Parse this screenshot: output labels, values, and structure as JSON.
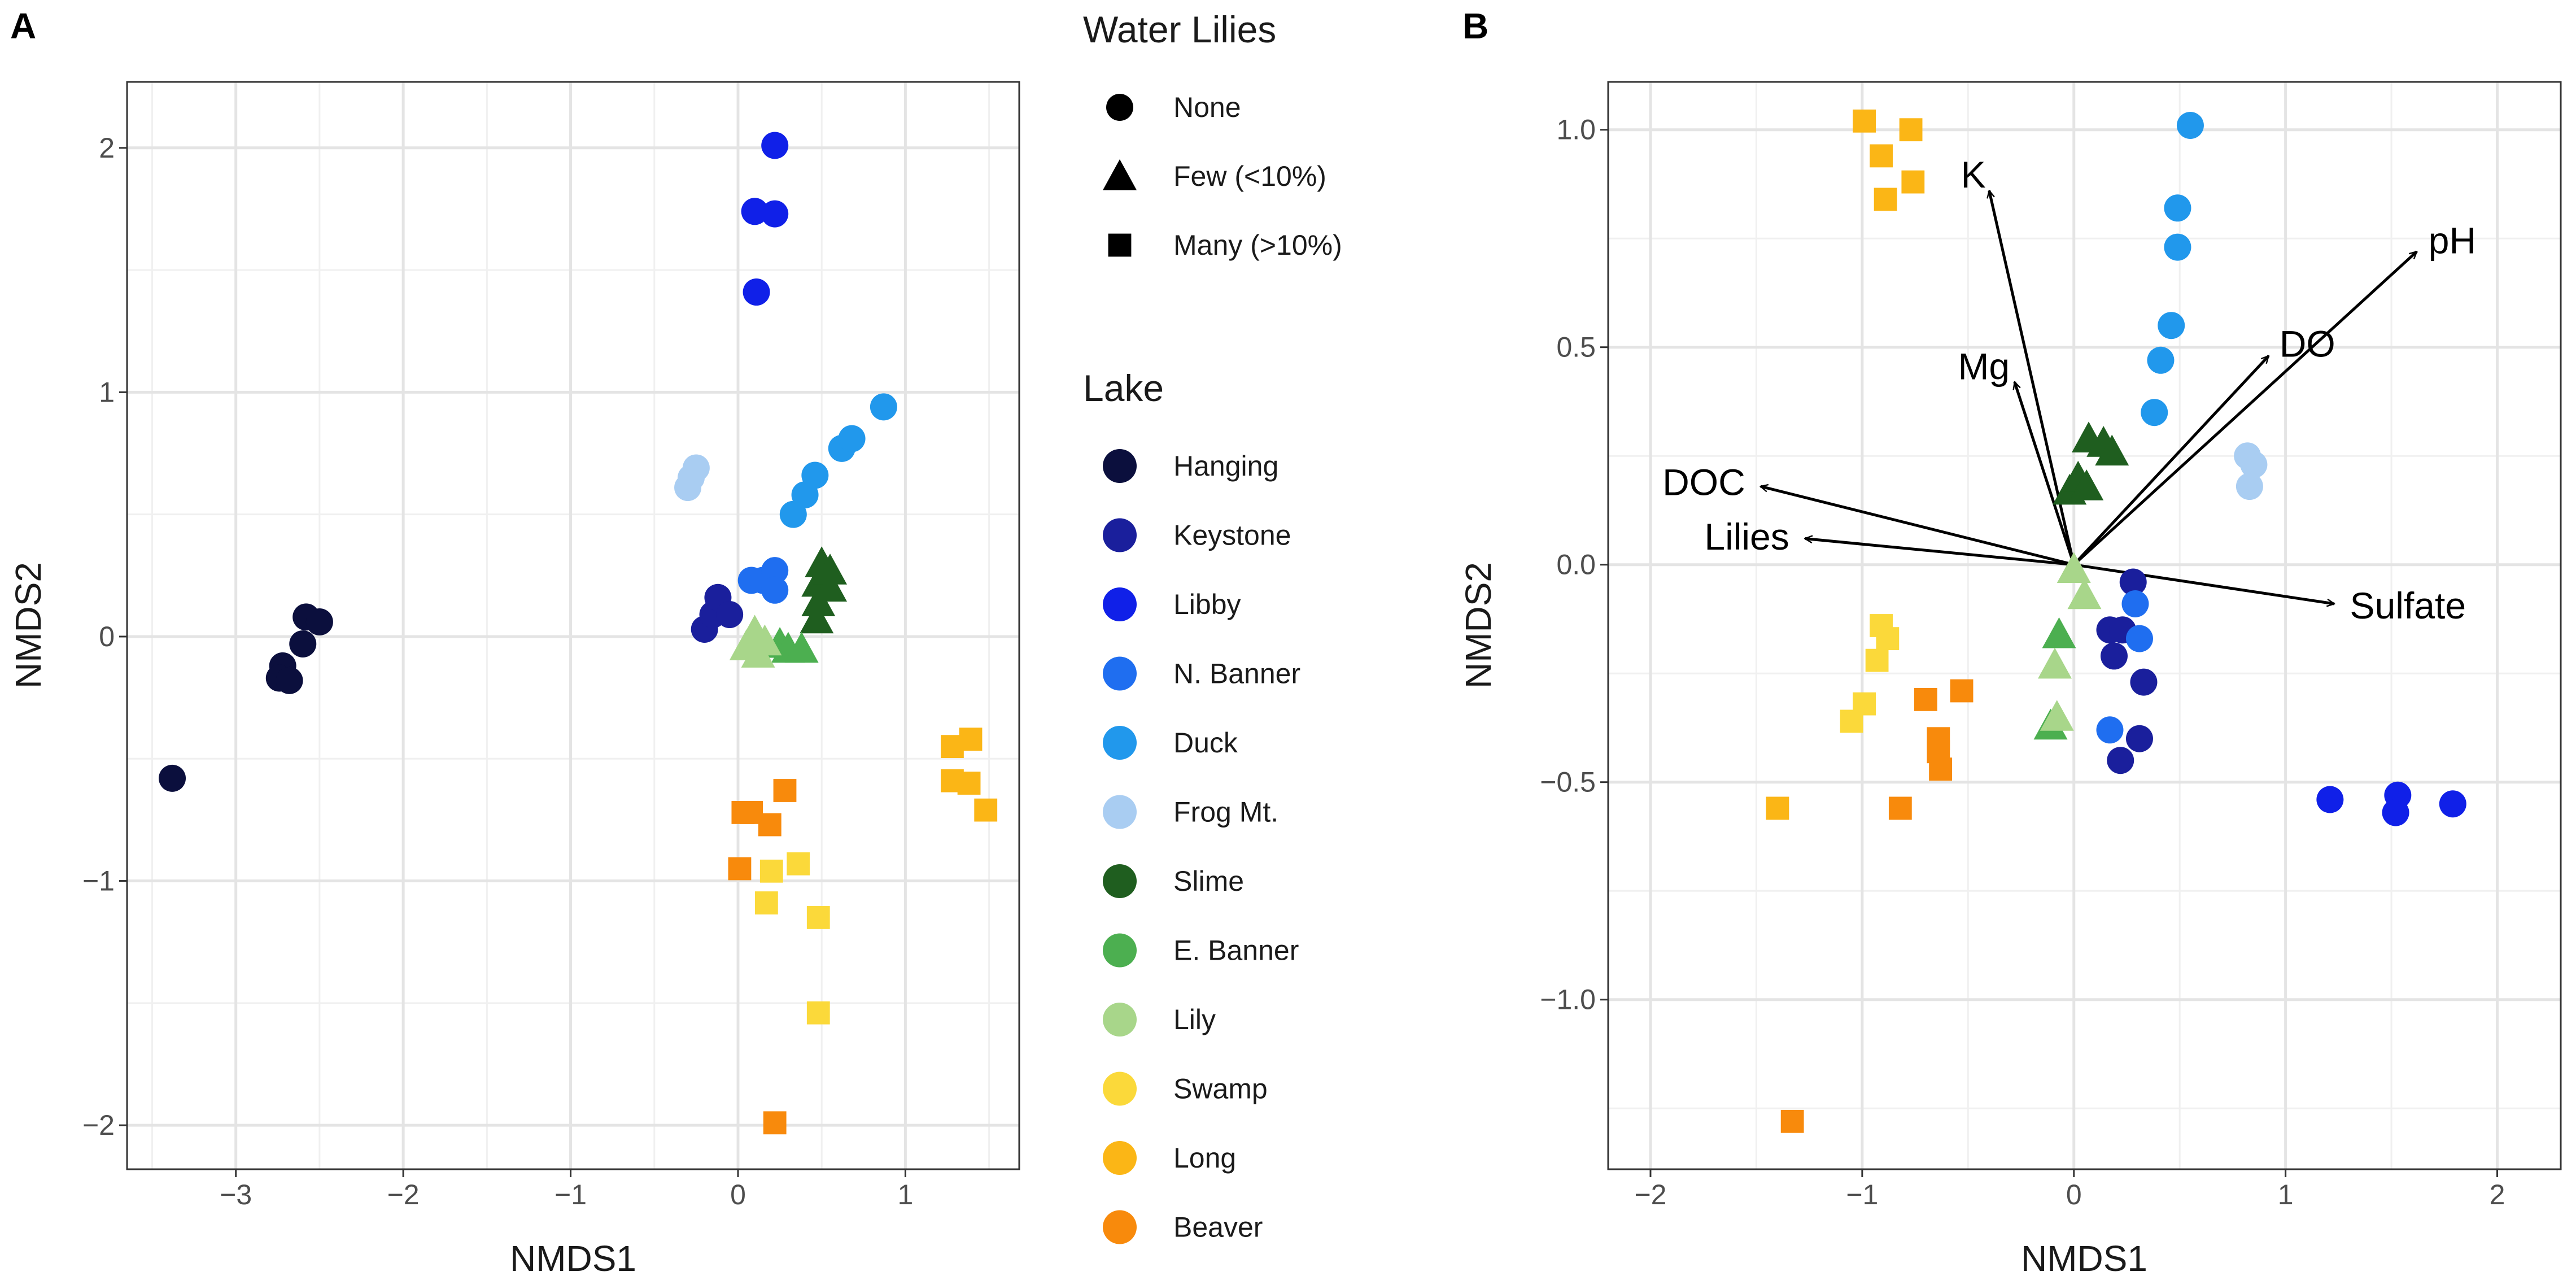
{
  "chart_data": [
    {
      "panel": "A",
      "type": "scatter",
      "xlabel": "NMDS1",
      "ylabel": "NMDS2",
      "xlim": [
        -3.65,
        1.68
      ],
      "ylim": [
        -2.18,
        2.27
      ],
      "xticks": [
        -3,
        -2,
        -1,
        0,
        1
      ],
      "yticks": [
        -2,
        -1,
        0,
        1,
        2
      ],
      "xtick_labels": [
        "−3",
        "−2",
        "−1",
        "0",
        "1"
      ],
      "ytick_labels": [
        "−2",
        "−1",
        "0",
        "1",
        "2"
      ],
      "grid": true,
      "points": [
        {
          "x": -3.38,
          "y": -0.58,
          "lake": "Hanging",
          "shape": "circle"
        },
        {
          "x": -2.72,
          "y": -0.12,
          "lake": "Hanging",
          "shape": "circle"
        },
        {
          "x": -2.74,
          "y": -0.17,
          "lake": "Hanging",
          "shape": "circle"
        },
        {
          "x": -2.68,
          "y": -0.18,
          "lake": "Hanging",
          "shape": "circle"
        },
        {
          "x": -2.6,
          "y": -0.03,
          "lake": "Hanging",
          "shape": "circle"
        },
        {
          "x": -2.58,
          "y": 0.08,
          "lake": "Hanging",
          "shape": "circle"
        },
        {
          "x": -2.5,
          "y": 0.06,
          "lake": "Hanging",
          "shape": "circle"
        },
        {
          "x": -0.2,
          "y": 0.03,
          "lake": "Keystone",
          "shape": "circle"
        },
        {
          "x": -0.15,
          "y": 0.09,
          "lake": "Keystone",
          "shape": "circle"
        },
        {
          "x": -0.12,
          "y": 0.16,
          "lake": "Keystone",
          "shape": "circle"
        },
        {
          "x": -0.05,
          "y": 0.09,
          "lake": "Keystone",
          "shape": "circle"
        },
        {
          "x": 0.22,
          "y": 2.01,
          "lake": "Libby",
          "shape": "circle"
        },
        {
          "x": 0.1,
          "y": 1.74,
          "lake": "Libby",
          "shape": "circle"
        },
        {
          "x": 0.22,
          "y": 1.73,
          "lake": "Libby",
          "shape": "circle"
        },
        {
          "x": 0.11,
          "y": 1.41,
          "lake": "Libby",
          "shape": "circle"
        },
        {
          "x": 0.08,
          "y": 0.23,
          "lake": "N. Banner",
          "shape": "circle"
        },
        {
          "x": 0.15,
          "y": 0.23,
          "lake": "N. Banner",
          "shape": "circle"
        },
        {
          "x": 0.22,
          "y": 0.27,
          "lake": "N. Banner",
          "shape": "circle"
        },
        {
          "x": 0.22,
          "y": 0.19,
          "lake": "N. Banner",
          "shape": "circle"
        },
        {
          "x": 0.33,
          "y": 0.5,
          "lake": "Duck",
          "shape": "circle"
        },
        {
          "x": 0.4,
          "y": 0.58,
          "lake": "Duck",
          "shape": "circle"
        },
        {
          "x": 0.46,
          "y": 0.66,
          "lake": "Duck",
          "shape": "circle"
        },
        {
          "x": 0.62,
          "y": 0.77,
          "lake": "Duck",
          "shape": "circle"
        },
        {
          "x": 0.68,
          "y": 0.81,
          "lake": "Duck",
          "shape": "circle"
        },
        {
          "x": 0.87,
          "y": 0.94,
          "lake": "Duck",
          "shape": "circle"
        },
        {
          "x": -0.3,
          "y": 0.61,
          "lake": "Frog Mt.",
          "shape": "circle"
        },
        {
          "x": -0.28,
          "y": 0.65,
          "lake": "Frog Mt.",
          "shape": "circle"
        },
        {
          "x": -0.25,
          "y": 0.69,
          "lake": "Frog Mt.",
          "shape": "circle"
        },
        {
          "x": 0.47,
          "y": 0.07,
          "lake": "Slime",
          "shape": "triangle"
        },
        {
          "x": 0.48,
          "y": 0.14,
          "lake": "Slime",
          "shape": "triangle"
        },
        {
          "x": 0.48,
          "y": 0.22,
          "lake": "Slime",
          "shape": "triangle"
        },
        {
          "x": 0.5,
          "y": 0.3,
          "lake": "Slime",
          "shape": "triangle"
        },
        {
          "x": 0.55,
          "y": 0.27,
          "lake": "Slime",
          "shape": "triangle"
        },
        {
          "x": 0.55,
          "y": 0.2,
          "lake": "Slime",
          "shape": "triangle"
        },
        {
          "x": 0.25,
          "y": -0.03,
          "lake": "E. Banner",
          "shape": "triangle"
        },
        {
          "x": 0.3,
          "y": -0.05,
          "lake": "E. Banner",
          "shape": "triangle"
        },
        {
          "x": 0.38,
          "y": -0.05,
          "lake": "E. Banner",
          "shape": "triangle"
        },
        {
          "x": 0.05,
          "y": -0.04,
          "lake": "Lily",
          "shape": "triangle"
        },
        {
          "x": 0.1,
          "y": 0.02,
          "lake": "Lily",
          "shape": "triangle"
        },
        {
          "x": 0.12,
          "y": -0.07,
          "lake": "Lily",
          "shape": "triangle"
        },
        {
          "x": 0.16,
          "y": -0.02,
          "lake": "Lily",
          "shape": "triangle"
        },
        {
          "x": 0.17,
          "y": -1.09,
          "lake": "Swamp",
          "shape": "square"
        },
        {
          "x": 0.2,
          "y": -0.96,
          "lake": "Swamp",
          "shape": "square"
        },
        {
          "x": 0.36,
          "y": -0.93,
          "lake": "Swamp",
          "shape": "square"
        },
        {
          "x": 0.48,
          "y": -1.15,
          "lake": "Swamp",
          "shape": "square"
        },
        {
          "x": 0.48,
          "y": -1.54,
          "lake": "Swamp",
          "shape": "square"
        },
        {
          "x": 1.28,
          "y": -0.45,
          "lake": "Long",
          "shape": "square"
        },
        {
          "x": 1.39,
          "y": -0.42,
          "lake": "Long",
          "shape": "square"
        },
        {
          "x": 1.28,
          "y": -0.59,
          "lake": "Long",
          "shape": "square"
        },
        {
          "x": 1.38,
          "y": -0.6,
          "lake": "Long",
          "shape": "square"
        },
        {
          "x": 1.48,
          "y": -0.71,
          "lake": "Long",
          "shape": "square"
        },
        {
          "x": 0.03,
          "y": -0.72,
          "lake": "Beaver",
          "shape": "square"
        },
        {
          "x": 0.08,
          "y": -0.72,
          "lake": "Beaver",
          "shape": "square"
        },
        {
          "x": 0.19,
          "y": -0.77,
          "lake": "Beaver",
          "shape": "square"
        },
        {
          "x": 0.28,
          "y": -0.63,
          "lake": "Beaver",
          "shape": "square"
        },
        {
          "x": 0.01,
          "y": -0.95,
          "lake": "Beaver",
          "shape": "square"
        },
        {
          "x": 0.22,
          "y": -1.99,
          "lake": "Beaver",
          "shape": "square"
        }
      ],
      "vectors": []
    },
    {
      "panel": "B",
      "type": "scatter",
      "xlabel": "NMDS1",
      "ylabel": "NMDS2",
      "xlim": [
        -2.2,
        2.3
      ],
      "ylim": [
        -1.39,
        1.11
      ],
      "xticks": [
        -2,
        -1,
        0,
        1,
        2
      ],
      "yticks": [
        -1.0,
        -0.5,
        0.0,
        0.5,
        1.0
      ],
      "xtick_labels": [
        "−2",
        "−1",
        "0",
        "1",
        "2"
      ],
      "ytick_labels": [
        "−1.0",
        "−0.5",
        "0.0",
        "0.5",
        "1.0"
      ],
      "grid": true,
      "points": [
        {
          "x": 0.28,
          "y": -0.04,
          "lake": "Keystone",
          "shape": "circle"
        },
        {
          "x": 0.17,
          "y": -0.15,
          "lake": "Keystone",
          "shape": "circle"
        },
        {
          "x": 0.23,
          "y": -0.15,
          "lake": "Keystone",
          "shape": "circle"
        },
        {
          "x": 0.19,
          "y": -0.21,
          "lake": "Keystone",
          "shape": "circle"
        },
        {
          "x": 0.33,
          "y": -0.27,
          "lake": "Keystone",
          "shape": "circle"
        },
        {
          "x": 0.31,
          "y": -0.4,
          "lake": "Keystone",
          "shape": "circle"
        },
        {
          "x": 0.22,
          "y": -0.45,
          "lake": "Keystone",
          "shape": "circle"
        },
        {
          "x": 1.21,
          "y": -0.54,
          "lake": "Libby",
          "shape": "circle"
        },
        {
          "x": 1.53,
          "y": -0.53,
          "lake": "Libby",
          "shape": "circle"
        },
        {
          "x": 1.52,
          "y": -0.57,
          "lake": "Libby",
          "shape": "circle"
        },
        {
          "x": 1.79,
          "y": -0.55,
          "lake": "Libby",
          "shape": "circle"
        },
        {
          "x": 0.29,
          "y": -0.09,
          "lake": "N. Banner",
          "shape": "circle"
        },
        {
          "x": 0.31,
          "y": -0.17,
          "lake": "N. Banner",
          "shape": "circle"
        },
        {
          "x": 0.17,
          "y": -0.38,
          "lake": "N. Banner",
          "shape": "circle"
        },
        {
          "x": 0.55,
          "y": 1.01,
          "lake": "Duck",
          "shape": "circle"
        },
        {
          "x": 0.49,
          "y": 0.82,
          "lake": "Duck",
          "shape": "circle"
        },
        {
          "x": 0.49,
          "y": 0.73,
          "lake": "Duck",
          "shape": "circle"
        },
        {
          "x": 0.46,
          "y": 0.55,
          "lake": "Duck",
          "shape": "circle"
        },
        {
          "x": 0.41,
          "y": 0.47,
          "lake": "Duck",
          "shape": "circle"
        },
        {
          "x": 0.38,
          "y": 0.35,
          "lake": "Duck",
          "shape": "circle"
        },
        {
          "x": 0.82,
          "y": 0.25,
          "lake": "Frog Mt.",
          "shape": "circle"
        },
        {
          "x": 0.85,
          "y": 0.23,
          "lake": "Frog Mt.",
          "shape": "circle"
        },
        {
          "x": 0.83,
          "y": 0.18,
          "lake": "Frog Mt.",
          "shape": "circle"
        },
        {
          "x": 0.07,
          "y": 0.29,
          "lake": "Slime",
          "shape": "triangle"
        },
        {
          "x": 0.14,
          "y": 0.28,
          "lake": "Slime",
          "shape": "triangle"
        },
        {
          "x": 0.18,
          "y": 0.26,
          "lake": "Slime",
          "shape": "triangle"
        },
        {
          "x": -0.02,
          "y": 0.17,
          "lake": "Slime",
          "shape": "triangle"
        },
        {
          "x": 0.02,
          "y": 0.2,
          "lake": "Slime",
          "shape": "triangle"
        },
        {
          "x": 0.06,
          "y": 0.18,
          "lake": "Slime",
          "shape": "triangle"
        },
        {
          "x": -0.07,
          "y": -0.16,
          "lake": "E. Banner",
          "shape": "triangle"
        },
        {
          "x": -0.11,
          "y": -0.37,
          "lake": "E. Banner",
          "shape": "triangle"
        },
        {
          "x": 0.0,
          "y": -0.01,
          "lake": "Lily",
          "shape": "triangle"
        },
        {
          "x": 0.05,
          "y": -0.07,
          "lake": "Lily",
          "shape": "triangle"
        },
        {
          "x": -0.09,
          "y": -0.23,
          "lake": "Lily",
          "shape": "triangle"
        },
        {
          "x": -0.08,
          "y": -0.35,
          "lake": "Lily",
          "shape": "triangle"
        },
        {
          "x": -0.91,
          "y": -0.14,
          "lake": "Swamp",
          "shape": "square"
        },
        {
          "x": -0.88,
          "y": -0.17,
          "lake": "Swamp",
          "shape": "square"
        },
        {
          "x": -0.93,
          "y": -0.22,
          "lake": "Swamp",
          "shape": "square"
        },
        {
          "x": -0.99,
          "y": -0.32,
          "lake": "Swamp",
          "shape": "square"
        },
        {
          "x": -1.05,
          "y": -0.36,
          "lake": "Swamp",
          "shape": "square"
        },
        {
          "x": -1.4,
          "y": -0.56,
          "lake": "Long",
          "shape": "square"
        },
        {
          "x": -0.99,
          "y": 1.02,
          "lake": "Long",
          "shape": "square"
        },
        {
          "x": -0.77,
          "y": 1.0,
          "lake": "Long",
          "shape": "square"
        },
        {
          "x": -0.91,
          "y": 0.94,
          "lake": "Long",
          "shape": "square"
        },
        {
          "x": -0.76,
          "y": 0.88,
          "lake": "Long",
          "shape": "square"
        },
        {
          "x": -0.89,
          "y": 0.84,
          "lake": "Long",
          "shape": "square"
        },
        {
          "x": -0.7,
          "y": -0.31,
          "lake": "Beaver",
          "shape": "square"
        },
        {
          "x": -0.53,
          "y": -0.29,
          "lake": "Beaver",
          "shape": "square"
        },
        {
          "x": -0.64,
          "y": -0.4,
          "lake": "Beaver",
          "shape": "square"
        },
        {
          "x": -0.64,
          "y": -0.43,
          "lake": "Beaver",
          "shape": "square"
        },
        {
          "x": -0.63,
          "y": -0.47,
          "lake": "Beaver",
          "shape": "square"
        },
        {
          "x": -0.82,
          "y": -0.56,
          "lake": "Beaver",
          "shape": "square"
        },
        {
          "x": -1.33,
          "y": -1.28,
          "lake": "Beaver",
          "shape": "square"
        }
      ],
      "vectors": [
        {
          "label": "K",
          "x": -0.4,
          "y": 0.86
        },
        {
          "label": "pH",
          "x": 1.62,
          "y": 0.72
        },
        {
          "label": "DO",
          "x": 0.92,
          "y": 0.48
        },
        {
          "label": "Mg",
          "x": -0.28,
          "y": 0.42
        },
        {
          "label": "DOC",
          "x": -1.48,
          "y": 0.18
        },
        {
          "label": "Lilies",
          "x": -1.27,
          "y": 0.06
        },
        {
          "label": "Sulfate",
          "x": 1.23,
          "y": -0.09
        }
      ]
    }
  ],
  "panel_labels": [
    "A",
    "B"
  ],
  "legend": {
    "shape_title": "Water Lilies",
    "shapes": [
      {
        "label": "None",
        "shape": "circle"
      },
      {
        "label": "Few (<10%)",
        "shape": "triangle"
      },
      {
        "label": "Many (>10%)",
        "shape": "square"
      }
    ],
    "lake_title": "Lake",
    "lakes": [
      {
        "label": "Hanging",
        "color": "#0b0f3d"
      },
      {
        "label": "Keystone",
        "color": "#1a1f9c"
      },
      {
        "label": "Libby",
        "color": "#1020e8"
      },
      {
        "label": "N. Banner",
        "color": "#1f6ef0"
      },
      {
        "label": "Duck",
        "color": "#2198ec"
      },
      {
        "label": "Frog Mt.",
        "color": "#a9cdf2"
      },
      {
        "label": "Slime",
        "color": "#1f5e1f"
      },
      {
        "label": "E. Banner",
        "color": "#4caf50"
      },
      {
        "label": "Lily",
        "color": "#a8d68a"
      },
      {
        "label": "Swamp",
        "color": "#fbd93a"
      },
      {
        "label": "Long",
        "color": "#fbb616"
      },
      {
        "label": "Beaver",
        "color": "#f88a0c"
      }
    ]
  }
}
